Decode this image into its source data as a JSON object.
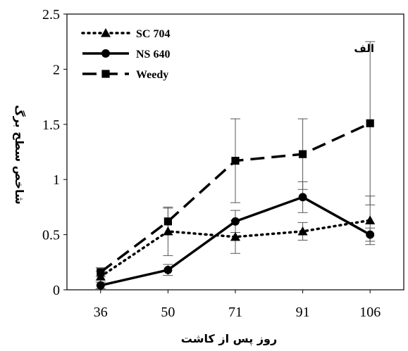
{
  "chart_data": {
    "type": "line",
    "xlabel": "روز پس از کاشت",
    "ylabel": "شاخص سطح برگ",
    "annotation": "الف",
    "categories": [
      "36",
      "50",
      "71",
      "91",
      "106"
    ],
    "ylim": [
      0,
      2.5
    ],
    "yticks": [
      "0",
      "0.5",
      "1",
      "1.5",
      "2",
      "2.5"
    ],
    "grid": false,
    "legend_position": "top-left",
    "series": [
      {
        "name": "SC 704",
        "marker": "triangle",
        "line_style": "dotted",
        "values": [
          0.12,
          0.53,
          0.48,
          0.53,
          0.63
        ],
        "errors": [
          0.05,
          0.22,
          0.15,
          0.08,
          0.22
        ]
      },
      {
        "name": "NS 640",
        "marker": "circle",
        "line_style": "solid",
        "values": [
          0.04,
          0.18,
          0.62,
          0.84,
          0.5
        ],
        "errors": [
          0.03,
          0.05,
          0.1,
          0.14,
          0.06
        ]
      },
      {
        "name": "Weedy",
        "marker": "square",
        "line_style": "dashed",
        "values": [
          0.16,
          0.62,
          1.17,
          1.23,
          1.51
        ],
        "errors": [
          0.04,
          0.12,
          0.38,
          0.32,
          0.74
        ]
      }
    ]
  }
}
